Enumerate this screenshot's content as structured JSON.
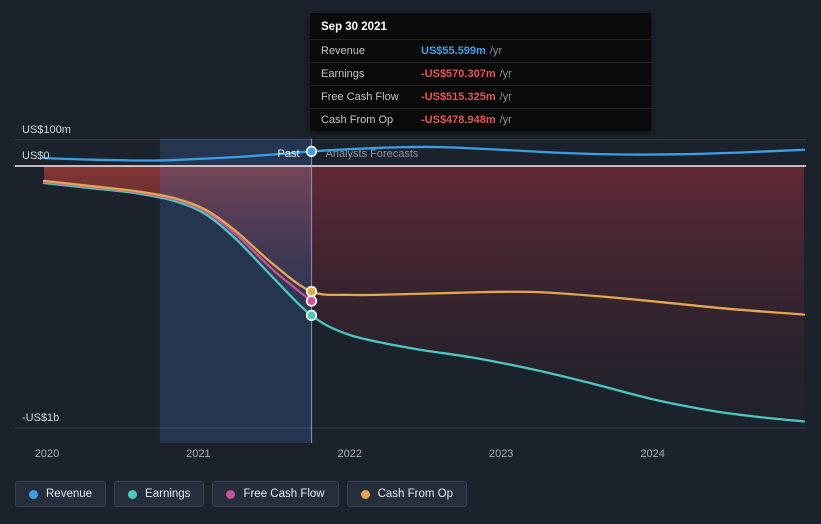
{
  "tooltip": {
    "title": "Sep 30 2021",
    "rows": [
      {
        "label": "Revenue",
        "value": "US$55.599m",
        "suffix": "/yr",
        "color": "#3b9fe8"
      },
      {
        "label": "Earnings",
        "value": "-US$570.307m",
        "suffix": "/yr",
        "color": "#e25555"
      },
      {
        "label": "Free Cash Flow",
        "value": "-US$515.325m",
        "suffix": "/yr",
        "color": "#e25555"
      },
      {
        "label": "Cash From Op",
        "value": "-US$478.948m",
        "suffix": "/yr",
        "color": "#e25555"
      }
    ]
  },
  "annotations": {
    "past_label": "Past",
    "forecast_label": "Analysts Forecasts"
  },
  "axis": {
    "y_labels": [
      {
        "text": "US$100m",
        "value": 100
      },
      {
        "text": "US$0",
        "value": 0
      },
      {
        "text": "-US$1b",
        "value": -1000
      }
    ],
    "x_labels": [
      {
        "text": "2020",
        "year": 2020
      },
      {
        "text": "2021",
        "year": 2021
      },
      {
        "text": "2022",
        "year": 2022
      },
      {
        "text": "2023",
        "year": 2023
      },
      {
        "text": "2024",
        "year": 2024
      }
    ]
  },
  "legend": [
    {
      "label": "Revenue",
      "color": "#3b9fe8"
    },
    {
      "label": "Earnings",
      "color": "#49c9c0"
    },
    {
      "label": "Free Cash Flow",
      "color": "#c9539c"
    },
    {
      "label": "Cash From Op",
      "color": "#e3a84f"
    }
  ],
  "chart_data": {
    "type": "line",
    "title": "Past performance and analysts forecasts (US$ millions per year)",
    "x_range": [
      2019.98,
      2025.0
    ],
    "y_range": [
      -1050,
      120
    ],
    "grid": true,
    "past_until": 2021.747,
    "highlight_band": [
      2020.746,
      2021.747
    ],
    "negative_fill_series": "Earnings",
    "series": [
      {
        "name": "Revenue",
        "color": "#3b9fe8",
        "points": [
          [
            2019.98,
            30
          ],
          [
            2020.3,
            24
          ],
          [
            2020.7,
            21
          ],
          [
            2021.0,
            27
          ],
          [
            2021.3,
            36
          ],
          [
            2021.55,
            46
          ],
          [
            2021.747,
            55.599
          ],
          [
            2022.0,
            64
          ],
          [
            2022.3,
            71
          ],
          [
            2022.6,
            72
          ],
          [
            2023.0,
            62
          ],
          [
            2023.4,
            50
          ],
          [
            2023.8,
            44
          ],
          [
            2024.2,
            45
          ],
          [
            2024.6,
            52
          ],
          [
            2025.0,
            62
          ]
        ]
      },
      {
        "name": "Earnings",
        "color": "#49c9c0",
        "points": [
          [
            2019.98,
            -65
          ],
          [
            2020.3,
            -85
          ],
          [
            2020.6,
            -105
          ],
          [
            2020.85,
            -135
          ],
          [
            2021.05,
            -185
          ],
          [
            2021.25,
            -280
          ],
          [
            2021.5,
            -430
          ],
          [
            2021.747,
            -570.307
          ],
          [
            2022.0,
            -645
          ],
          [
            2022.4,
            -695
          ],
          [
            2022.8,
            -730
          ],
          [
            2023.2,
            -775
          ],
          [
            2023.6,
            -830
          ],
          [
            2024.0,
            -890
          ],
          [
            2024.4,
            -935
          ],
          [
            2024.7,
            -958
          ],
          [
            2025.0,
            -975
          ]
        ]
      },
      {
        "name": "Free Cash Flow",
        "color": "#c9539c",
        "points": [
          [
            2019.98,
            -60
          ],
          [
            2020.3,
            -80
          ],
          [
            2020.6,
            -100
          ],
          [
            2020.85,
            -128
          ],
          [
            2021.05,
            -175
          ],
          [
            2021.25,
            -262
          ],
          [
            2021.5,
            -400
          ],
          [
            2021.747,
            -515.325
          ]
        ]
      },
      {
        "name": "Cash From Op",
        "color": "#e3a84f",
        "points": [
          [
            2019.98,
            -57
          ],
          [
            2020.3,
            -77
          ],
          [
            2020.6,
            -97
          ],
          [
            2020.85,
            -124
          ],
          [
            2021.05,
            -168
          ],
          [
            2021.25,
            -250
          ],
          [
            2021.5,
            -378
          ],
          [
            2021.747,
            -478.948
          ],
          [
            2022.0,
            -492
          ],
          [
            2022.3,
            -490
          ],
          [
            2022.7,
            -484
          ],
          [
            2023.0,
            -480
          ],
          [
            2023.3,
            -483
          ],
          [
            2023.7,
            -500
          ],
          [
            2024.1,
            -522
          ],
          [
            2024.5,
            -545
          ],
          [
            2025.0,
            -567
          ]
        ]
      }
    ]
  }
}
